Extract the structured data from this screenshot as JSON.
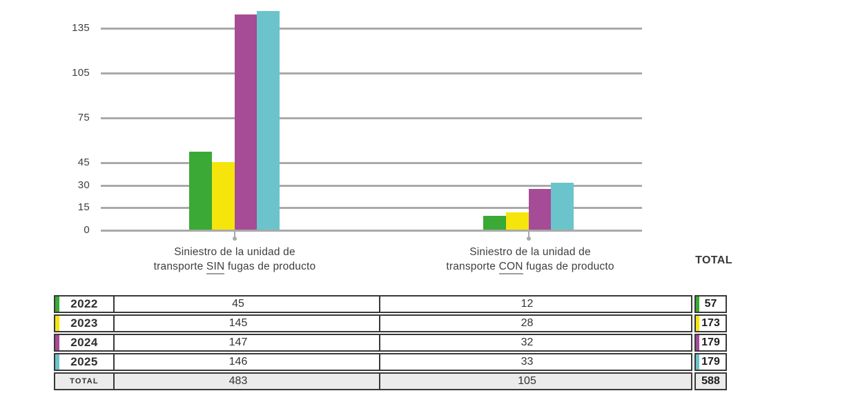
{
  "colors": {
    "grid": "#a9a9a9",
    "text": "#3e3e3e",
    "table_border": "#383838",
    "total_row_bg": "#ebebeb",
    "underline": "#9c9c9c"
  },
  "totals_header": "TOTAL",
  "captions": [
    {
      "line1": "Siniestro de la unidad de",
      "line2_prefix": "transporte ",
      "word": "SIN",
      "line2_suffix": " fugas de producto"
    },
    {
      "line1": "Siniestro de la unidad de",
      "line2_prefix": "transporte ",
      "word": "CON",
      "line2_suffix": " fugas de producto"
    }
  ],
  "table": {
    "total_label": "TOTAL"
  },
  "chart_data": {
    "type": "bar",
    "title": "",
    "xlabel": "",
    "ylabel": "",
    "grid": true,
    "legend_position": "none",
    "categories": [
      "Siniestro de la unidad de transporte SIN fugas de producto",
      "Siniestro de la unidad de transporte CON fugas de producto"
    ],
    "series": [
      {
        "name": "2022",
        "color": "#3aa935",
        "values": [
          45,
          12
        ],
        "total": 57
      },
      {
        "name": "2023",
        "color": "#f5e50d",
        "values": [
          145,
          28
        ],
        "total": 173
      },
      {
        "name": "2024",
        "color": "#a64b96",
        "values": [
          147,
          32
        ],
        "total": 179
      },
      {
        "name": "2025",
        "color": "#6bc4cb",
        "values": [
          146,
          33
        ],
        "total": 179
      }
    ],
    "column_totals": [
      483,
      105
    ],
    "grand_total": 588,
    "bars_as_drawn": [
      [
        52,
        45,
        144,
        146
      ],
      [
        9,
        11.5,
        27,
        31.5
      ]
    ],
    "y_ticks": [
      135,
      105,
      75,
      45,
      30,
      15,
      0
    ],
    "ylim": [
      0,
      155
    ]
  }
}
